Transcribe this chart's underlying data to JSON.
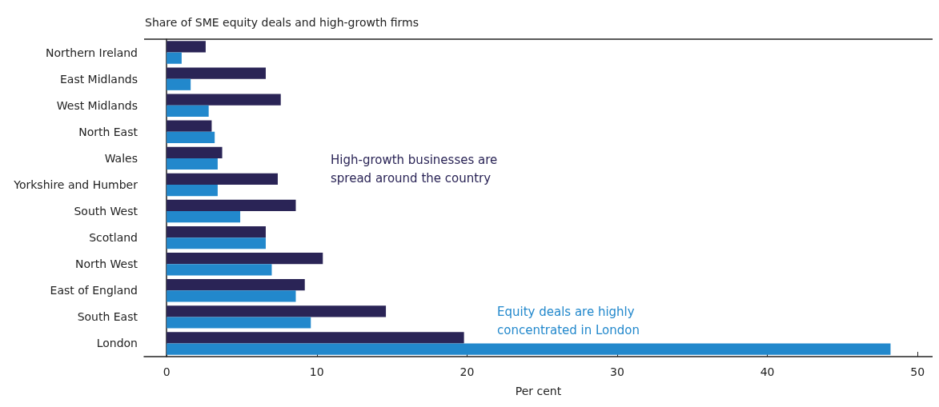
{
  "chart_data": {
    "type": "bar",
    "orientation": "horizontal",
    "title": "Share of SME equity deals and high-growth firms",
    "xlabel": "Per cent",
    "categories": [
      "Northern Ireland",
      "East Midlands",
      "West Midlands",
      "North East",
      "Wales",
      "Yorkshire and Humber",
      "South West",
      "Scotland",
      "North West",
      "East of England",
      "South East",
      "London"
    ],
    "series": [
      {
        "color": "#2a2456",
        "values": [
          2.6,
          6.6,
          7.6,
          3.0,
          3.7,
          7.4,
          8.6,
          6.6,
          10.4,
          9.2,
          14.6,
          19.8
        ]
      },
      {
        "color": "#2288cc",
        "values": [
          1.0,
          1.6,
          2.8,
          3.2,
          3.4,
          3.4,
          4.9,
          6.6,
          7.0,
          8.6,
          9.6,
          48.2
        ]
      }
    ],
    "annotations": [
      "High-growth businesses are\nspread around the country",
      "Equity deals are highly\nconcentrated in London"
    ],
    "xlim": [
      -1.5,
      51
    ],
    "xticks": [
      0,
      10,
      20,
      30,
      40,
      50
    ]
  }
}
